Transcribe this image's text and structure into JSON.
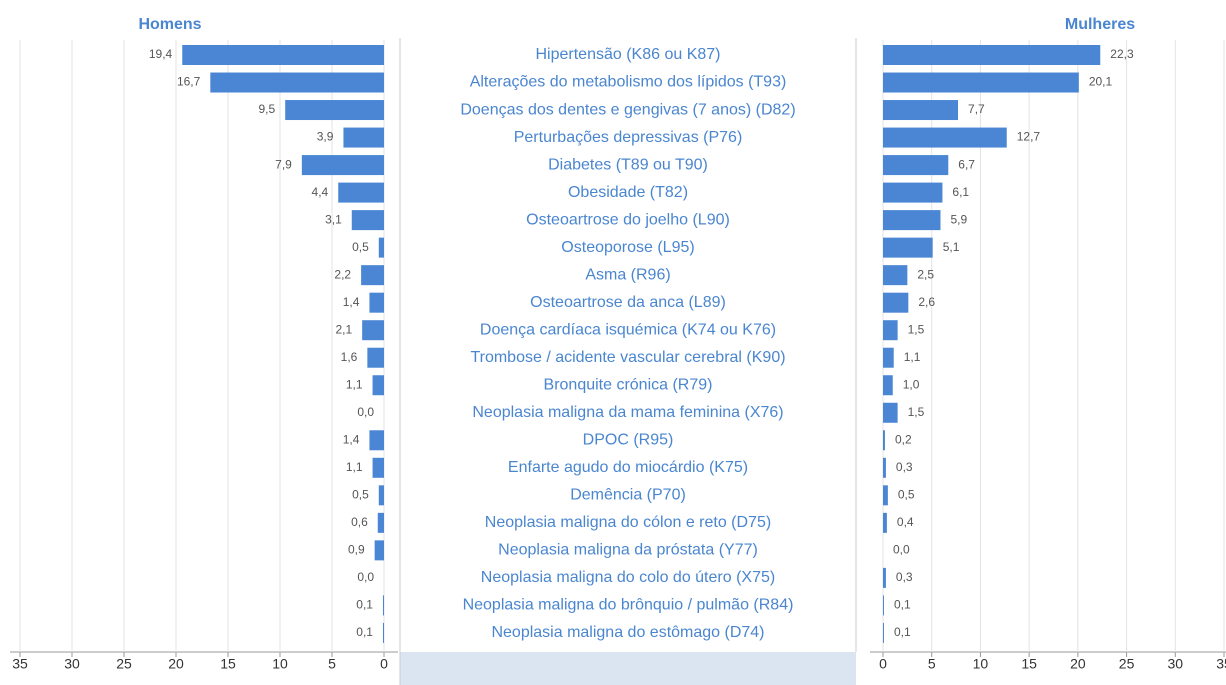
{
  "chart_data": {
    "type": "bar",
    "orientation": "horizontal",
    "categories": [
      "Hipertensão (K86 ou K87)",
      "Alterações do metabolismo dos lípidos (T93)",
      "Doenças dos dentes e gengivas (7 anos) (D82)",
      "Perturbações depressivas (P76)",
      "Diabetes (T89 ou T90)",
      "Obesidade (T82)",
      "Osteoartrose do joelho (L90)",
      "Osteoporose (L95)",
      "Asma (R96)",
      "Osteoartrose da anca (L89)",
      "Doença cardíaca isquémica (K74 ou K76)",
      "Trombose / acidente vascular cerebral (K90)",
      "Bronquite crónica (R79)",
      "Neoplasia maligna da mama feminina (X76)",
      "DPOC (R95)",
      "Enfarte agudo do miocárdio (K75)",
      "Demência (P70)",
      "Neoplasia maligna do cólon e reto (D75)",
      "Neoplasia maligna da próstata (Y77)",
      "Neoplasia maligna do colo do útero (X75)",
      "Neoplasia maligna do brônquio / pulmão (R84)",
      "Neoplasia maligna do estômago (D74)"
    ],
    "series": [
      {
        "name": "Homens",
        "color": "#4a86d4",
        "values": [
          19.4,
          16.7,
          9.5,
          3.9,
          7.9,
          4.4,
          3.1,
          0.5,
          2.2,
          1.4,
          2.1,
          1.6,
          1.1,
          0.0,
          1.4,
          1.1,
          0.5,
          0.6,
          0.9,
          0.0,
          0.1,
          0.1
        ],
        "value_labels": [
          "19,4",
          "16,7",
          "9,5",
          "3,9",
          "7,9",
          "4,4",
          "3,1",
          "0,5",
          "2,2",
          "1,4",
          "2,1",
          "1,6",
          "1,1",
          "0,0",
          "1,4",
          "1,1",
          "0,5",
          "0,6",
          "0,9",
          "0,0",
          "0,1",
          "0,1"
        ]
      },
      {
        "name": "Mulheres",
        "color": "#4a86d4",
        "values": [
          22.3,
          20.1,
          7.7,
          12.7,
          6.7,
          6.1,
          5.9,
          5.1,
          2.5,
          2.6,
          1.5,
          1.1,
          1.0,
          1.5,
          0.2,
          0.3,
          0.5,
          0.4,
          0.0,
          0.3,
          0.1,
          0.1
        ],
        "value_labels": [
          "22,3",
          "20,1",
          "7,7",
          "12,7",
          "6,7",
          "6,1",
          "5,9",
          "5,1",
          "2,5",
          "2,6",
          "1,5",
          "1,1",
          "1,0",
          "1,5",
          "0,2",
          "0,3",
          "0,5",
          "0,4",
          "0,0",
          "0,3",
          "0,1",
          "0,1"
        ]
      }
    ],
    "xlim": [
      0,
      35
    ],
    "xticks": [
      0,
      5,
      10,
      15,
      20,
      25,
      30,
      35
    ],
    "grid": true
  }
}
